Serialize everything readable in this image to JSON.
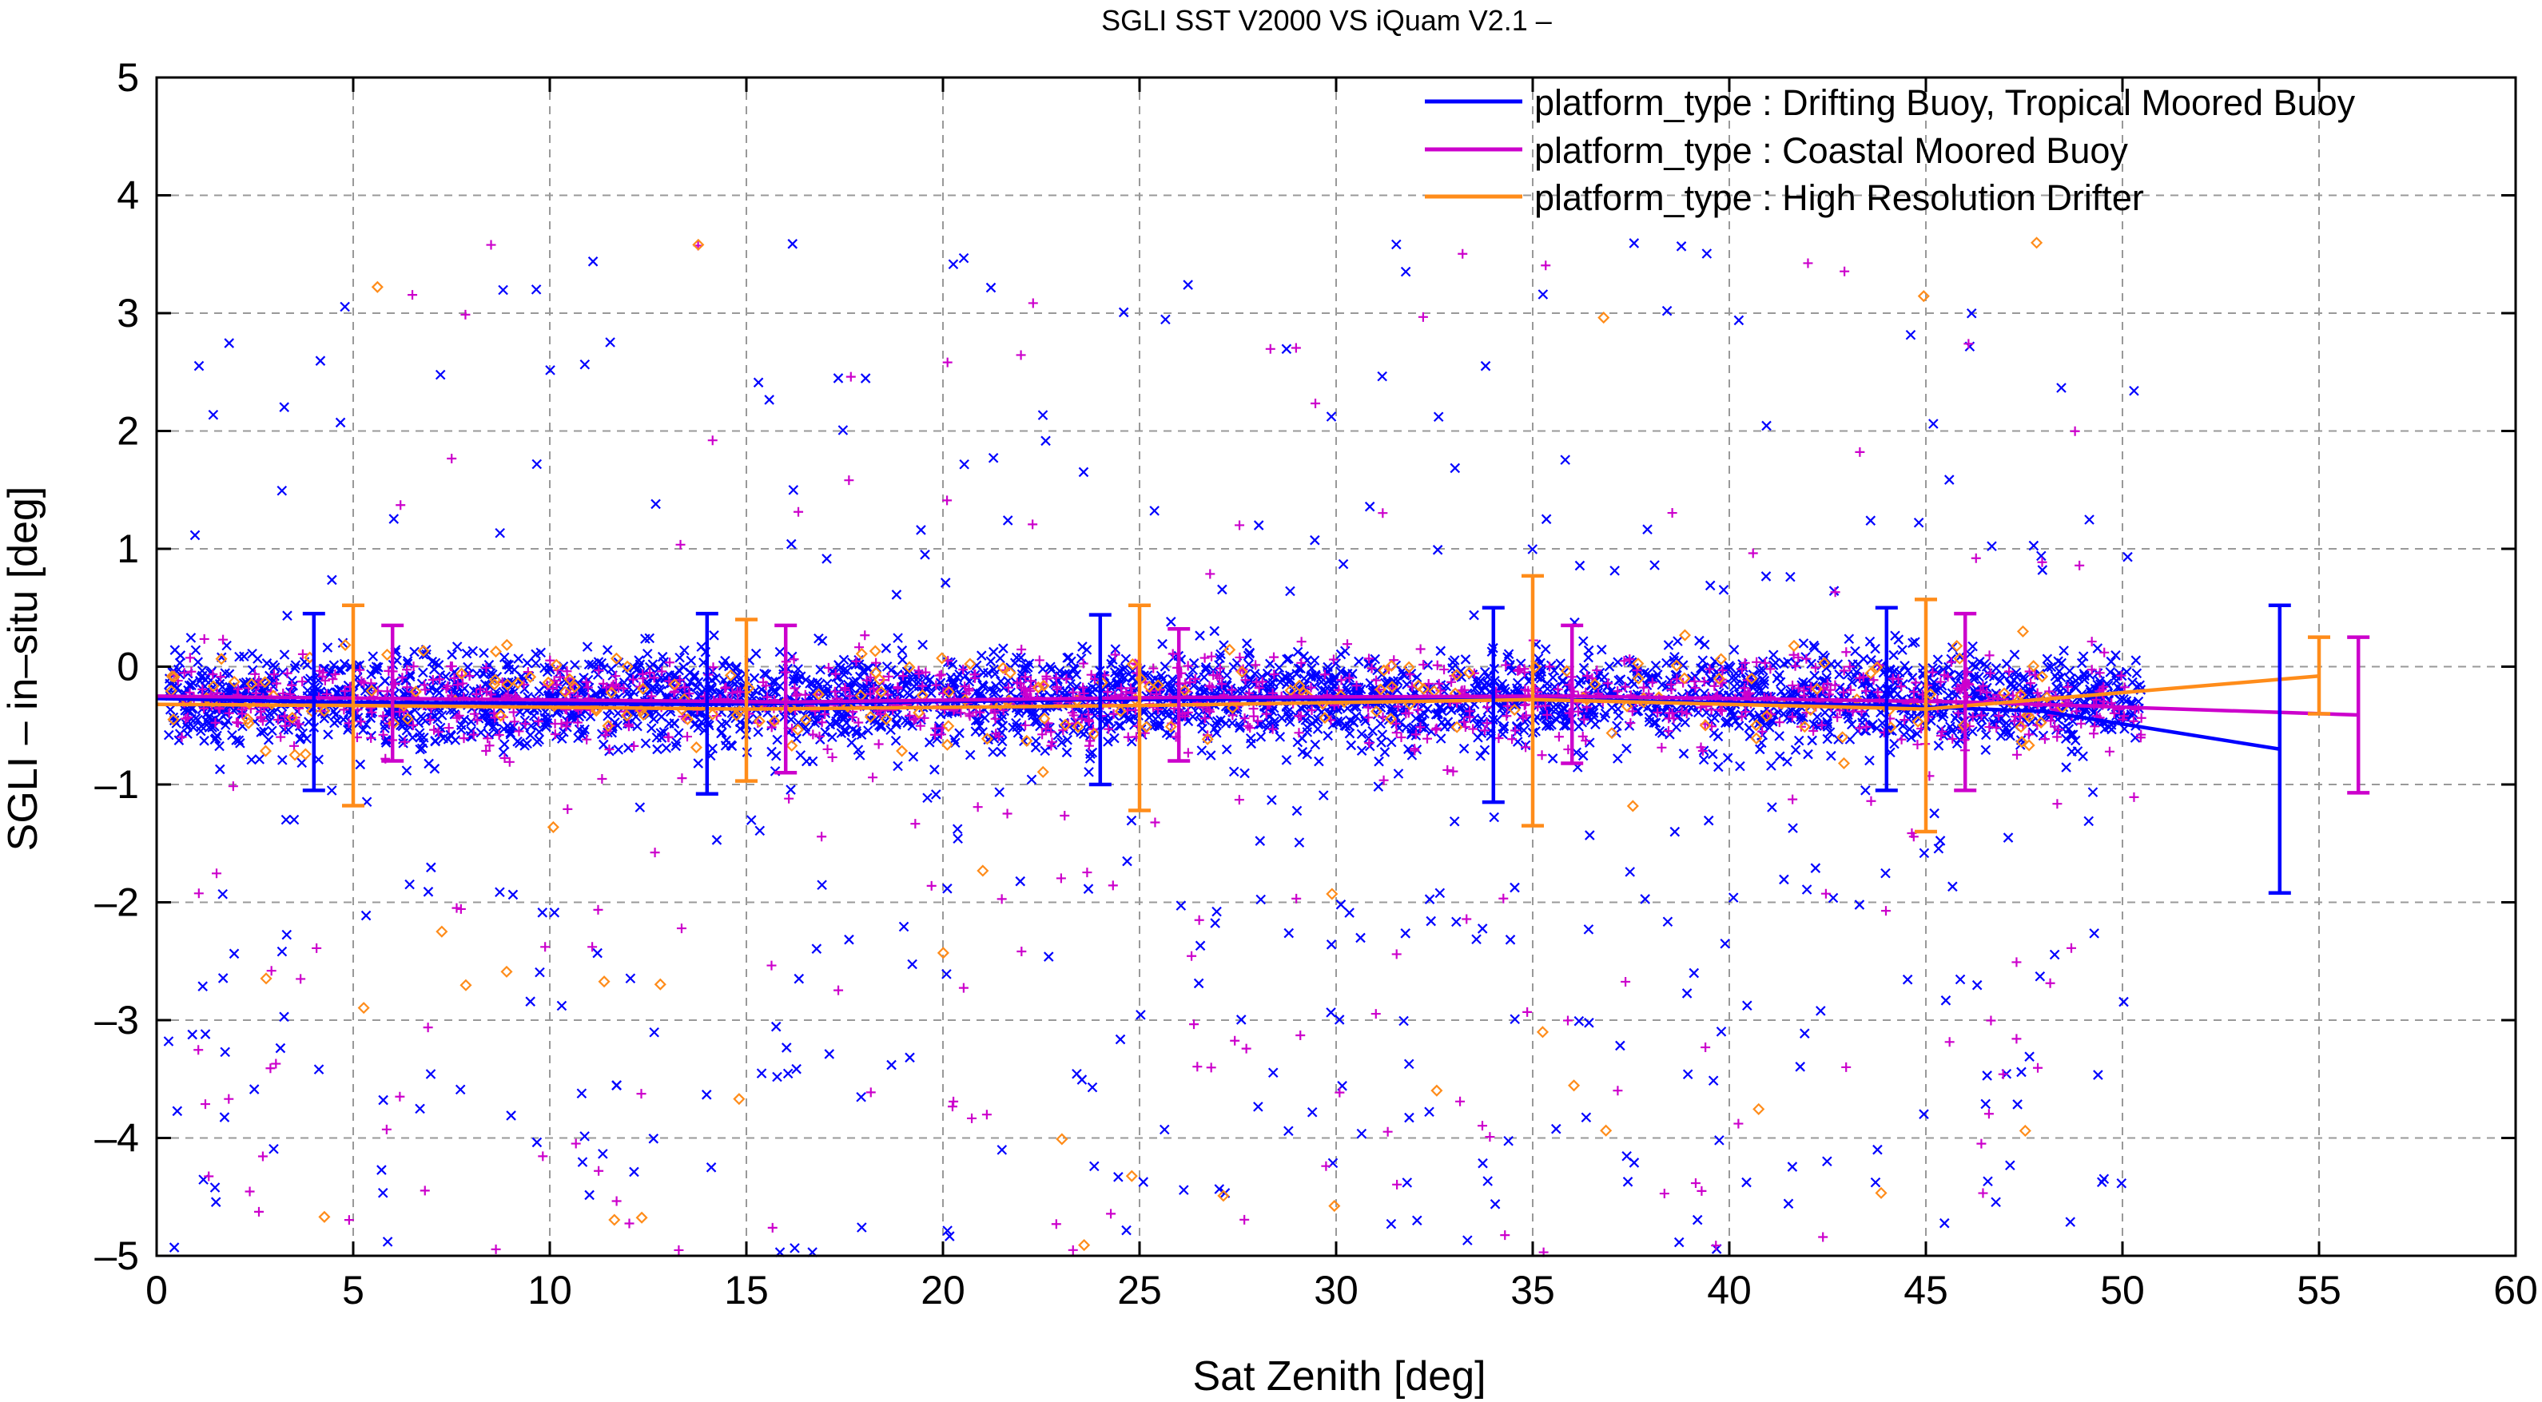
{
  "chart_data": {
    "type": "scatter",
    "title": "SGLI SST V2000 VS iQuam V2.1  –",
    "xlabel": "Sat Zenith [deg]",
    "ylabel": "SGLI – in–situ [deg]",
    "xlim": [
      0,
      60
    ],
    "ylim": [
      -5,
      5
    ],
    "xticks": [
      "0",
      "5",
      "10",
      "15",
      "20",
      "25",
      "30",
      "35",
      "40",
      "45",
      "50",
      "55",
      "60"
    ],
    "yticks": [
      "–5",
      "–4",
      "–3",
      "–2",
      "–1",
      "0",
      "1",
      "2",
      "3",
      "4",
      "5"
    ],
    "grid": true,
    "legend_position": "top-right",
    "x_range_of_matchups": [
      0.3,
      50.5
    ],
    "series": [
      {
        "name": "platform_type : Drifting Buoy, Tropical Moored Buoy",
        "color": "#0000ff",
        "marker": "x",
        "bias_line": {
          "x": [
            0,
            4,
            14,
            24,
            34,
            44,
            48,
            54
          ],
          "y": [
            -0.27,
            -0.3,
            -0.32,
            -0.28,
            -0.27,
            -0.33,
            -0.38,
            -0.7
          ]
        },
        "error_bars": [
          {
            "x": 4,
            "mean": -0.3,
            "low": -1.05,
            "high": 0.45
          },
          {
            "x": 14,
            "mean": -0.32,
            "low": -1.08,
            "high": 0.45
          },
          {
            "x": 24,
            "mean": -0.28,
            "low": -1.0,
            "high": 0.44
          },
          {
            "x": 34,
            "mean": -0.27,
            "low": -1.15,
            "high": 0.5
          },
          {
            "x": 44,
            "mean": -0.33,
            "low": -1.05,
            "high": 0.5
          },
          {
            "x": 54,
            "mean": -0.7,
            "low": -1.92,
            "high": 0.52
          }
        ]
      },
      {
        "name": "platform_type : Coastal Moored Buoy",
        "color": "#cc00cc",
        "marker": "+",
        "bias_line": {
          "x": [
            0,
            6,
            16,
            26,
            36,
            46,
            56
          ],
          "y": [
            -0.25,
            -0.27,
            -0.3,
            -0.26,
            -0.25,
            -0.3,
            -0.41
          ]
        },
        "error_bars": [
          {
            "x": 6,
            "mean": -0.27,
            "low": -0.8,
            "high": 0.35
          },
          {
            "x": 16,
            "mean": -0.3,
            "low": -0.9,
            "high": 0.35
          },
          {
            "x": 26,
            "mean": -0.26,
            "low": -0.8,
            "high": 0.32
          },
          {
            "x": 36,
            "mean": -0.25,
            "low": -0.82,
            "high": 0.35
          },
          {
            "x": 46,
            "mean": -0.3,
            "low": -1.05,
            "high": 0.45
          },
          {
            "x": 56,
            "mean": -0.41,
            "low": -1.07,
            "high": 0.25
          }
        ]
      },
      {
        "name": "platform_type : High Resolution Drifter",
        "color": "#ff8c1a",
        "marker": "diamond",
        "bias_line": {
          "x": [
            0,
            5,
            15,
            25,
            35,
            45,
            55
          ],
          "y": [
            -0.32,
            -0.33,
            -0.36,
            -0.33,
            -0.28,
            -0.36,
            -0.08
          ]
        },
        "error_bars": [
          {
            "x": 5,
            "mean": -0.33,
            "low": -1.18,
            "high": 0.52
          },
          {
            "x": 15,
            "mean": -0.36,
            "low": -0.97,
            "high": 0.4
          },
          {
            "x": 25,
            "mean": -0.33,
            "low": -1.22,
            "high": 0.52
          },
          {
            "x": 35,
            "mean": -0.28,
            "low": -1.35,
            "high": 0.77
          },
          {
            "x": 45,
            "mean": -0.36,
            "low": -1.4,
            "high": 0.57
          },
          {
            "x": 55,
            "mean": -0.08,
            "low": -0.4,
            "high": 0.25
          }
        ]
      }
    ]
  }
}
